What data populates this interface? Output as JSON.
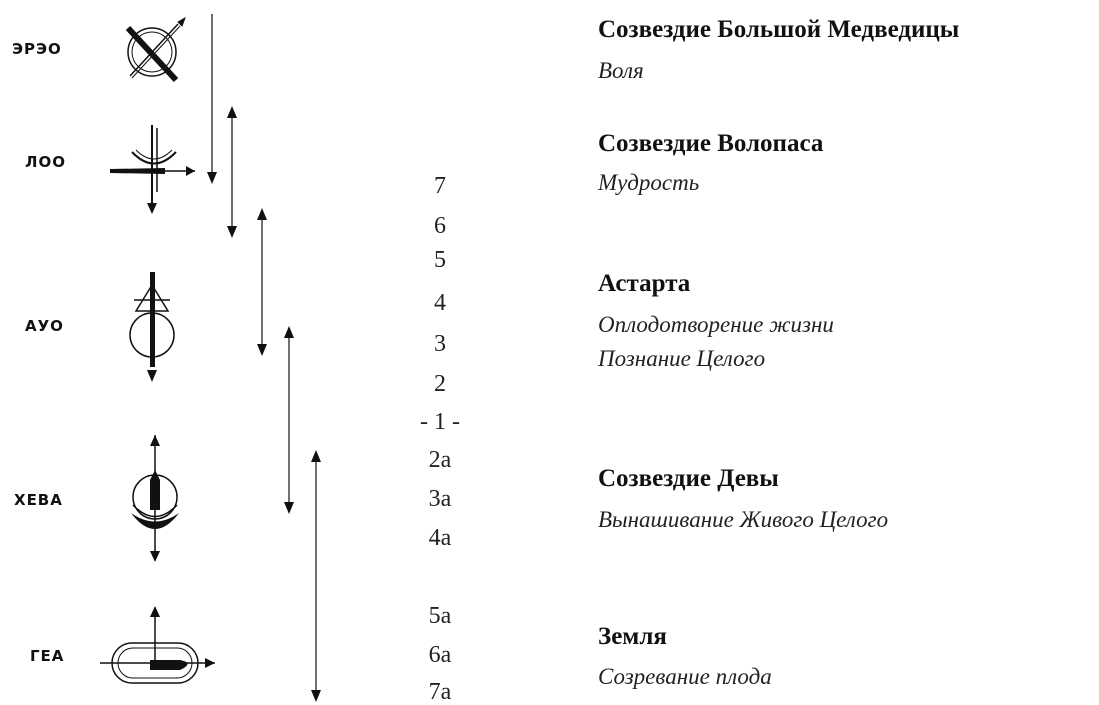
{
  "symbols": [
    {
      "label": "ЭРЭО",
      "icon": "crossed-circle-icon"
    },
    {
      "label": "ЛОО",
      "icon": "crescent-cross-icon"
    },
    {
      "label": "АУО",
      "icon": "circle-triangle-icon"
    },
    {
      "label": "ХЕВА",
      "icon": "stacked-crescent-icon"
    },
    {
      "label": "ГЕА",
      "icon": "capsule-arrow-icon"
    }
  ],
  "scale": [
    "7",
    "6",
    "5",
    "4",
    "3",
    "2",
    "- 1 -",
    "2a",
    "3a",
    "4a",
    "5a",
    "6a",
    "7a"
  ],
  "constellations": [
    {
      "title": "Созвездие Большой Медведицы",
      "sub": [
        "Воля"
      ]
    },
    {
      "title": "Созвездие Волопаса",
      "sub": [
        "Мудрость"
      ]
    },
    {
      "title": "Астарта",
      "sub": [
        "Оплодотворение жизни",
        "Познание Целого"
      ]
    },
    {
      "title": "Созвездие Девы",
      "sub": [
        "Вынашивание Живого Целого"
      ]
    },
    {
      "title": "Земля",
      "sub": [
        "Созревание плода"
      ]
    }
  ]
}
